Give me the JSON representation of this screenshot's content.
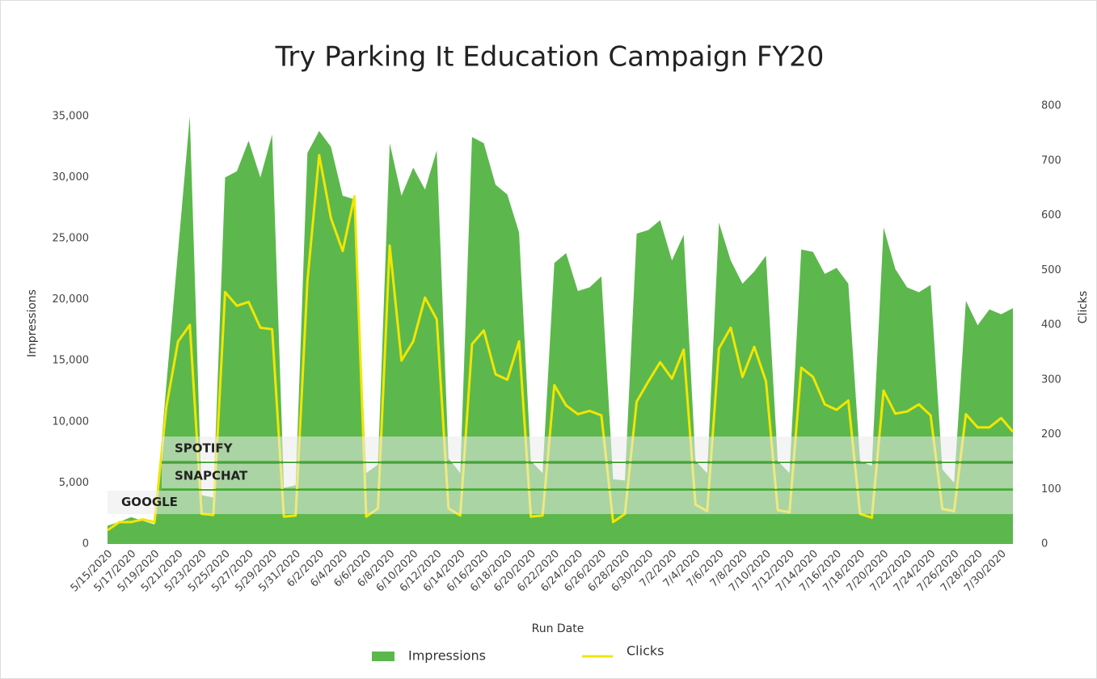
{
  "chart_data": {
    "type": "area-line",
    "title": "Try Parking It Education Campaign FY20",
    "x_label": "Run Date",
    "y_label": "Impressions",
    "y2_label": "Clicks",
    "categories": [
      "5/15/2020",
      null,
      "5/17/2020",
      null,
      "5/19/2020",
      null,
      "5/21/2020",
      null,
      "5/23/2020",
      null,
      "5/25/2020",
      null,
      "5/27/2020",
      null,
      "5/29/2020",
      null,
      "5/31/2020",
      null,
      "6/2/2020",
      null,
      "6/4/2020",
      null,
      "6/6/2020",
      null,
      "6/8/2020",
      null,
      "6/10/2020",
      null,
      "6/12/2020",
      null,
      "6/14/2020",
      null,
      "6/16/2020",
      null,
      "6/18/2020",
      null,
      "6/20/2020",
      null,
      "6/22/2020",
      null,
      "6/24/2020",
      null,
      "6/26/2020",
      null,
      "6/28/2020",
      null,
      "6/30/2020",
      null,
      "7/2/2020",
      null,
      "7/4/2020",
      null,
      "7/6/2020",
      null,
      "7/8/2020",
      null,
      "7/10/2020",
      null,
      "7/12/2020",
      null,
      "7/14/2020",
      null,
      "7/16/2020",
      null,
      "7/18/2020",
      null,
      "7/20/2020",
      null,
      "7/22/2020",
      null,
      "7/24/2020",
      null,
      "7/26/2020",
      null,
      "7/28/2020",
      null,
      "7/30/2020",
      null
    ],
    "series": [
      {
        "name": "Impressions",
        "color": "#5cb84c",
        "kind": "area",
        "values": [
          1500,
          1800,
          2200,
          1900,
          1600,
          13000,
          24000,
          35000,
          4000,
          3800,
          30000,
          30500,
          33000,
          30000,
          33500,
          4600,
          4800,
          32000,
          33800,
          32500,
          28500,
          28200,
          5800,
          6500,
          32800,
          28500,
          30800,
          29000,
          32200,
          7000,
          5800,
          33300,
          32800,
          29400,
          28600,
          25500,
          6800,
          5800,
          23000,
          23800,
          20700,
          21000,
          21900,
          5300,
          5200,
          25400,
          25700,
          26500,
          23200,
          25300,
          6800,
          5800,
          26300,
          23200,
          21300,
          22300,
          23600,
          6800,
          5800,
          24100,
          23900,
          22100,
          22600,
          21300,
          6800,
          6400,
          25900,
          22500,
          21000,
          20600,
          21200,
          6100,
          5000,
          19900,
          17900,
          19200,
          18800,
          19300
        ]
      },
      {
        "name": "Clicks",
        "color": "#f2e600",
        "kind": "line",
        "axis": "y2",
        "values": [
          25,
          40,
          40,
          45,
          40,
          250,
          370,
          400,
          55,
          53,
          460,
          435,
          442,
          395,
          392,
          50,
          52,
          480,
          710,
          595,
          535,
          635,
          50,
          65,
          545,
          335,
          370,
          450,
          410,
          65,
          52,
          365,
          390,
          310,
          300,
          370,
          50,
          52,
          290,
          253,
          237,
          243,
          235,
          40,
          55,
          260,
          297,
          332,
          302,
          355,
          72,
          60,
          357,
          395,
          305,
          360,
          297,
          62,
          58,
          322,
          305,
          255,
          245,
          262,
          55,
          48,
          280,
          238,
          242,
          255,
          235,
          64,
          60,
          237,
          213,
          213,
          230,
          205
        ]
      }
    ],
    "ylim": [
      0,
      35850
    ],
    "yticks": [
      0,
      {
        "value": 5000,
        "label": "5,000"
      },
      {
        "value": 10000,
        "label": "10,000"
      },
      {
        "value": 15000,
        "label": "15,000"
      },
      {
        "value": 20000,
        "label": "20,000"
      },
      {
        "value": 25000,
        "label": "25,000"
      },
      {
        "value": 30000,
        "label": "30,000"
      },
      {
        "value": 35000,
        "label": "35,000"
      }
    ],
    "y2lim": [
      0,
      800
    ],
    "y2ticks": [
      0,
      100,
      200,
      300,
      400,
      500,
      600,
      700,
      800
    ],
    "annotations": [
      "SPOTIFY",
      "SNAPCHAT",
      "GOOGLE"
    ]
  }
}
